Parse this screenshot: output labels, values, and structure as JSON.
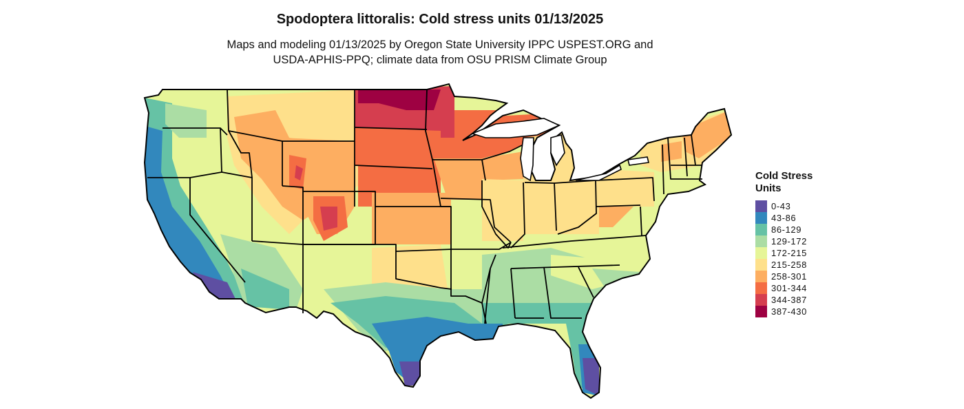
{
  "title": "Spodoptera littoralis: Cold stress units 01/13/2025",
  "subtitle_line1": "Maps and modeling 01/13/2025 by Oregon State University IPPC USPEST.ORG and",
  "subtitle_line2": "USDA-APHIS-PPQ; climate data from OSU PRISM Climate Group",
  "legend": {
    "title_line1": "Cold Stress",
    "title_line2": "Units",
    "items": [
      {
        "label": "0-43",
        "color": "#5e4fa2"
      },
      {
        "label": "43-86",
        "color": "#3288bd"
      },
      {
        "label": "86-129",
        "color": "#66c2a5"
      },
      {
        "label": "129-172",
        "color": "#abdda4"
      },
      {
        "label": "172-215",
        "color": "#e6f598"
      },
      {
        "label": "215-258",
        "color": "#fee08b"
      },
      {
        "label": "258-301",
        "color": "#fdae61"
      },
      {
        "label": "301-344",
        "color": "#f46d43"
      },
      {
        "label": "344-387",
        "color": "#d53e4f"
      },
      {
        "label": "387-430",
        "color": "#9e0142"
      }
    ]
  }
}
